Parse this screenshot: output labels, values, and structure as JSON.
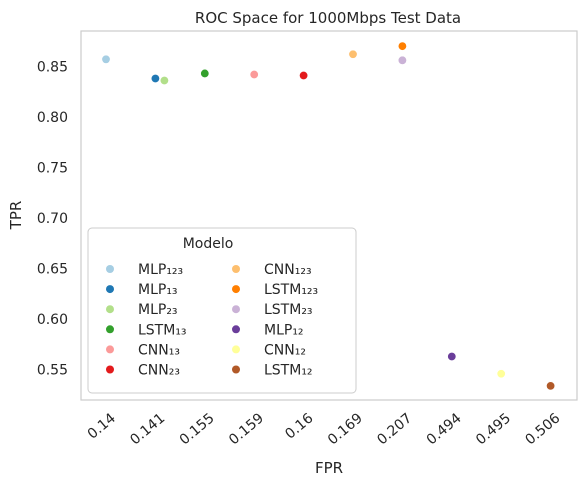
{
  "chart_data": {
    "type": "scatter",
    "title": "ROC Space for 1000Mbps Test Data",
    "xlabel": "FPR",
    "ylabel": "TPR",
    "x_axis_kind": "categorical",
    "x_ticks": [
      "0.14",
      "0.141",
      "0.155",
      "0.159",
      "0.16",
      "0.169",
      "0.207",
      "0.494",
      "0.495",
      "0.506"
    ],
    "y_ticks": [
      "0.55",
      "0.60",
      "0.65",
      "0.70",
      "0.75",
      "0.80",
      "0.85"
    ],
    "ylim": [
      0.52,
      0.885
    ],
    "grid": false,
    "legend": {
      "title": "Modelo",
      "position": "lower-left",
      "columns": 2
    },
    "series": [
      {
        "name": "MLP₁₂₃",
        "x": "0.14",
        "y": 0.857,
        "color": "#a6cee3"
      },
      {
        "name": "MLP₁₃",
        "x": "0.141",
        "y": 0.838,
        "color": "#1f78b4"
      },
      {
        "name": "MLP₂₃",
        "x": "0.141",
        "y": 0.836,
        "color": "#b2df8a"
      },
      {
        "name": "LSTM₁₃",
        "x": "0.155",
        "y": 0.843,
        "color": "#33a02c"
      },
      {
        "name": "CNN₁₃",
        "x": "0.159",
        "y": 0.842,
        "color": "#fb9a99"
      },
      {
        "name": "CNN₂₃",
        "x": "0.16",
        "y": 0.841,
        "color": "#e31a1c"
      },
      {
        "name": "CNN₁₂₃",
        "x": "0.169",
        "y": 0.862,
        "color": "#fdbf6f"
      },
      {
        "name": "LSTM₁₂₃",
        "x": "0.207",
        "y": 0.87,
        "color": "#ff7f00"
      },
      {
        "name": "LSTM₂₃",
        "x": "0.207",
        "y": 0.856,
        "color": "#cab2d6"
      },
      {
        "name": "MLP₁₂",
        "x": "0.494",
        "y": 0.563,
        "color": "#6a3d9a"
      },
      {
        "name": "CNN₁₂",
        "x": "0.495",
        "y": 0.546,
        "color": "#ffff99"
      },
      {
        "name": "LSTM₁₂",
        "x": "0.506",
        "y": 0.534,
        "color": "#b15928"
      }
    ]
  }
}
